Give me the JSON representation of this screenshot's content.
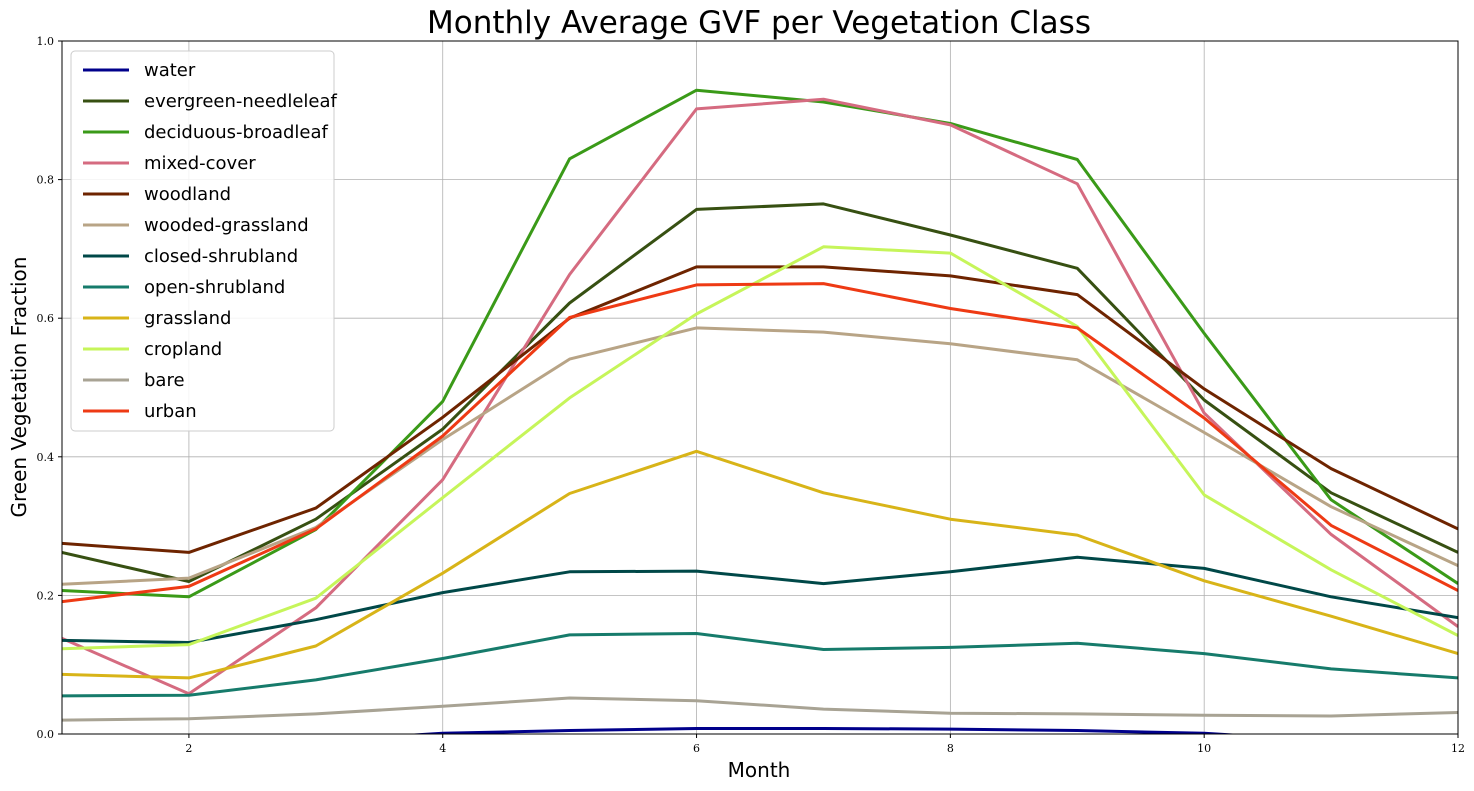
{
  "chart_data": {
    "type": "line",
    "title": "Monthly Average GVF per Vegetation Class",
    "xlabel": "Month",
    "ylabel": "Green Vegetation Fraction",
    "xlim": [
      1,
      12
    ],
    "ylim": [
      0.0,
      1.0
    ],
    "xticks": [
      2,
      4,
      6,
      8,
      10,
      12
    ],
    "yticks": [
      0.0,
      0.2,
      0.4,
      0.6,
      0.8,
      1.0
    ],
    "ytick_labels": [
      "0.0",
      "0.2",
      "0.4",
      "0.6",
      "0.8",
      "1.0"
    ],
    "grid": true,
    "legend_position": "upper-left",
    "x": [
      1,
      2,
      3,
      4,
      5,
      6,
      7,
      8,
      9,
      10,
      11,
      12
    ],
    "series": [
      {
        "name": "water",
        "color": "#00008b",
        "values": [
          -0.03,
          -0.02,
          -0.01,
          0.001,
          0.005,
          0.008,
          0.008,
          0.007,
          0.005,
          0.001,
          -0.01,
          -0.03
        ]
      },
      {
        "name": "evergreen-needleleaf",
        "color": "#375012",
        "values": [
          0.262,
          0.22,
          0.31,
          0.44,
          0.622,
          0.757,
          0.765,
          0.72,
          0.672,
          0.482,
          0.348,
          0.262
        ]
      },
      {
        "name": "deciduous-broadleaf",
        "color": "#3a9a18",
        "values": [
          0.207,
          0.198,
          0.295,
          0.48,
          0.83,
          0.929,
          0.912,
          0.881,
          0.829,
          0.578,
          0.338,
          0.217
        ]
      },
      {
        "name": "mixed-cover",
        "color": "#d56b80",
        "values": [
          0.138,
          0.058,
          0.182,
          0.367,
          0.663,
          0.902,
          0.916,
          0.879,
          0.794,
          0.463,
          0.288,
          0.155
        ]
      },
      {
        "name": "woodland",
        "color": "#6e2400",
        "values": [
          0.275,
          0.262,
          0.326,
          0.457,
          0.6,
          0.674,
          0.674,
          0.661,
          0.634,
          0.498,
          0.383,
          0.296
        ]
      },
      {
        "name": "wooded-grassland",
        "color": "#b8a486",
        "values": [
          0.216,
          0.225,
          0.298,
          0.425,
          0.541,
          0.586,
          0.58,
          0.563,
          0.54,
          0.435,
          0.328,
          0.243
        ]
      },
      {
        "name": "closed-shrubland",
        "color": "#004848",
        "values": [
          0.135,
          0.132,
          0.165,
          0.204,
          0.234,
          0.235,
          0.217,
          0.234,
          0.255,
          0.239,
          0.198,
          0.168
        ]
      },
      {
        "name": "open-shrubland",
        "color": "#167b6b",
        "values": [
          0.055,
          0.056,
          0.078,
          0.109,
          0.143,
          0.145,
          0.122,
          0.125,
          0.131,
          0.116,
          0.094,
          0.081
        ]
      },
      {
        "name": "grassland",
        "color": "#d8b418",
        "values": [
          0.086,
          0.081,
          0.127,
          0.232,
          0.347,
          0.408,
          0.348,
          0.31,
          0.287,
          0.221,
          0.17,
          0.116
        ]
      },
      {
        "name": "cropland",
        "color": "#c6f55a",
        "values": [
          0.123,
          0.129,
          0.196,
          0.341,
          0.485,
          0.606,
          0.703,
          0.694,
          0.588,
          0.345,
          0.237,
          0.142
        ]
      },
      {
        "name": "bare",
        "color": "#a8a394",
        "values": [
          0.02,
          0.022,
          0.029,
          0.04,
          0.052,
          0.048,
          0.036,
          0.03,
          0.029,
          0.027,
          0.026,
          0.031
        ]
      },
      {
        "name": "urban",
        "color": "#ee3a14",
        "values": [
          0.191,
          0.213,
          0.296,
          0.43,
          0.601,
          0.648,
          0.65,
          0.614,
          0.586,
          0.456,
          0.301,
          0.207
        ]
      }
    ]
  }
}
